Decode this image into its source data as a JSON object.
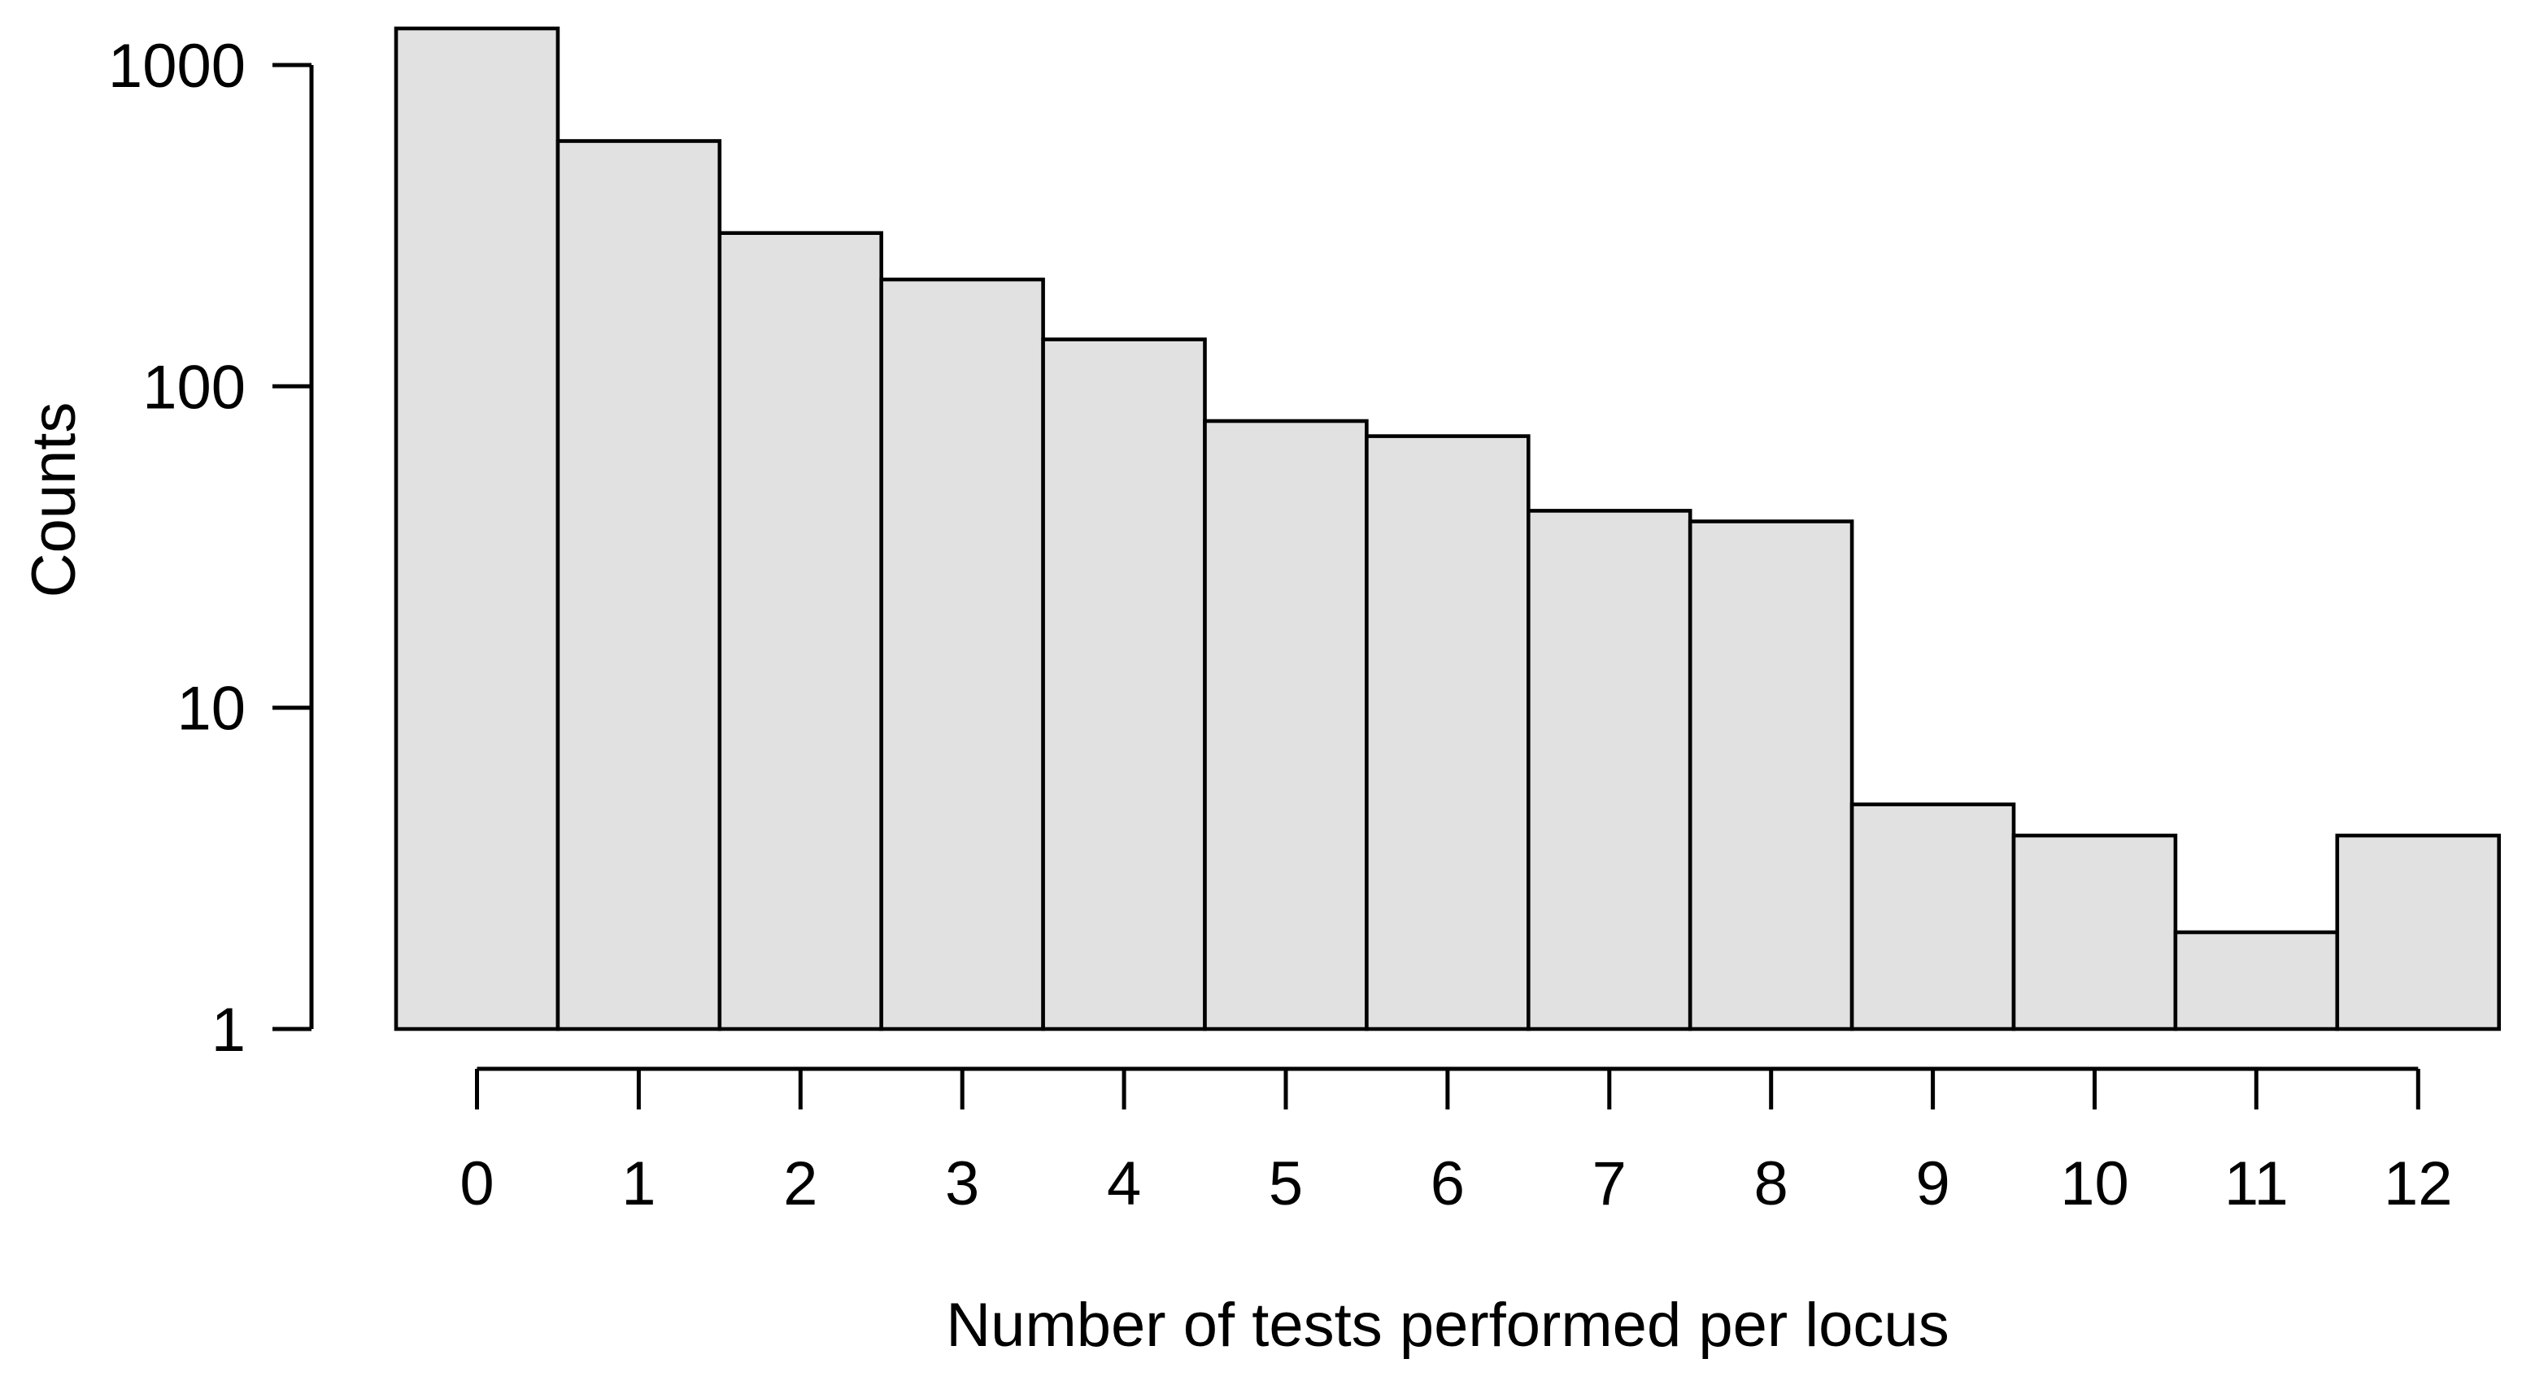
{
  "figure": {
    "type": "statistical-plot",
    "background": "#FFFFFF"
  },
  "chart_data": {
    "type": "bar",
    "subtype": "histogram-log-y",
    "title": "",
    "xlabel": "Number of tests performed per locus",
    "ylabel": "Counts",
    "categories": [
      "0",
      "1",
      "2",
      "3",
      "4",
      "5",
      "6",
      "7",
      "8",
      "9",
      "10",
      "11",
      "12"
    ],
    "values": [
      1300,
      580,
      300,
      215,
      140,
      78,
      70,
      41,
      38,
      5,
      4,
      2,
      4
    ],
    "y_scale": "log10",
    "ylim": [
      1,
      1000
    ],
    "y_ticks": [
      1,
      10,
      100,
      1000
    ],
    "y_tick_labels": [
      "1",
      "10",
      "100",
      "1000"
    ],
    "x_tick_labels": [
      "0",
      "1",
      "2",
      "3",
      "4",
      "5",
      "6",
      "7",
      "8",
      "9",
      "10",
      "11",
      "12"
    ],
    "grid": false,
    "legend": "none",
    "colors": {
      "bar_fill": "#E1E1E1",
      "bar_stroke": "#000000",
      "axis": "#000000",
      "text": "#000000",
      "background": "#FFFFFF"
    }
  }
}
